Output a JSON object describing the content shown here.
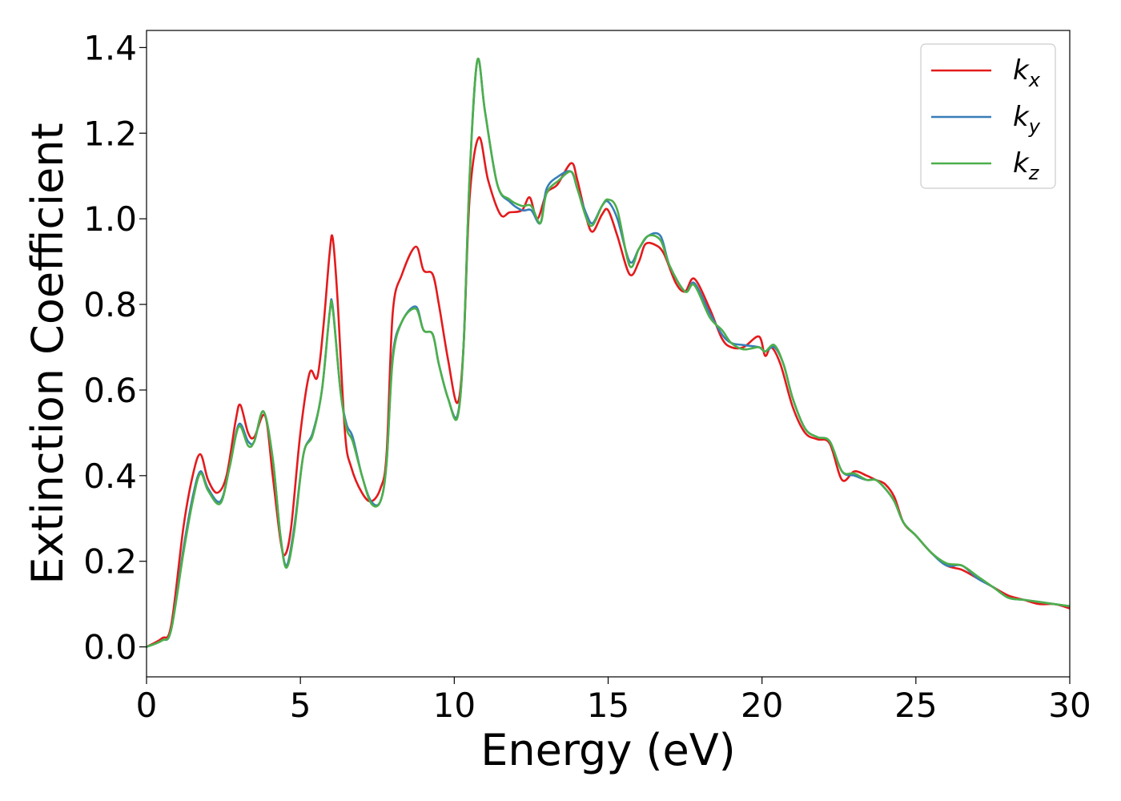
{
  "chart_data": {
    "type": "line",
    "xlabel": "Energy (eV)",
    "ylabel": "Extinction Coefficient",
    "xlim": [
      0,
      30
    ],
    "ylim": [
      -0.07,
      1.44
    ],
    "xticks": [
      "0",
      "5",
      "10",
      "15",
      "20",
      "25",
      "30"
    ],
    "yticks": [
      "0.0",
      "0.2",
      "0.4",
      "0.6",
      "0.8",
      "1.0",
      "1.2",
      "1.4"
    ],
    "grid": false,
    "legend_position": "top-right",
    "series": [
      {
        "name": "k",
        "subscript": "x",
        "color": "#e41a1c",
        "points": [
          [
            0,
            0
          ],
          [
            0.5,
            0.02
          ],
          [
            0.8,
            0.05
          ],
          [
            1.2,
            0.28
          ],
          [
            1.5,
            0.4
          ],
          [
            1.75,
            0.45
          ],
          [
            2.0,
            0.39
          ],
          [
            2.3,
            0.36
          ],
          [
            2.6,
            0.4
          ],
          [
            2.9,
            0.53
          ],
          [
            3.05,
            0.565
          ],
          [
            3.3,
            0.5
          ],
          [
            3.5,
            0.49
          ],
          [
            3.85,
            0.54
          ],
          [
            4.1,
            0.4
          ],
          [
            4.35,
            0.25
          ],
          [
            4.5,
            0.215
          ],
          [
            4.7,
            0.28
          ],
          [
            5.0,
            0.5
          ],
          [
            5.3,
            0.64
          ],
          [
            5.55,
            0.63
          ],
          [
            5.75,
            0.75
          ],
          [
            5.95,
            0.92
          ],
          [
            6.05,
            0.955
          ],
          [
            6.2,
            0.82
          ],
          [
            6.45,
            0.5
          ],
          [
            6.65,
            0.42
          ],
          [
            7.0,
            0.36
          ],
          [
            7.3,
            0.34
          ],
          [
            7.6,
            0.37
          ],
          [
            7.8,
            0.45
          ],
          [
            8.0,
            0.78
          ],
          [
            8.3,
            0.87
          ],
          [
            8.75,
            0.935
          ],
          [
            9.0,
            0.88
          ],
          [
            9.3,
            0.87
          ],
          [
            9.5,
            0.8
          ],
          [
            9.8,
            0.67
          ],
          [
            10.1,
            0.57
          ],
          [
            10.3,
            0.7
          ],
          [
            10.5,
            1.05
          ],
          [
            10.8,
            1.19
          ],
          [
            11.1,
            1.09
          ],
          [
            11.5,
            1.01
          ],
          [
            11.8,
            1.015
          ],
          [
            12.2,
            1.02
          ],
          [
            12.45,
            1.05
          ],
          [
            12.7,
            1.0
          ],
          [
            13.0,
            1.06
          ],
          [
            13.35,
            1.08
          ],
          [
            13.8,
            1.13
          ],
          [
            14.0,
            1.09
          ],
          [
            14.3,
            1.0
          ],
          [
            14.5,
            0.97
          ],
          [
            14.8,
            1.01
          ],
          [
            15.0,
            1.02
          ],
          [
            15.3,
            0.96
          ],
          [
            15.7,
            0.87
          ],
          [
            16.0,
            0.9
          ],
          [
            16.2,
            0.94
          ],
          [
            16.5,
            0.94
          ],
          [
            16.8,
            0.92
          ],
          [
            17.2,
            0.85
          ],
          [
            17.5,
            0.83
          ],
          [
            17.8,
            0.86
          ],
          [
            18.3,
            0.79
          ],
          [
            18.7,
            0.72
          ],
          [
            19.0,
            0.7
          ],
          [
            19.4,
            0.7
          ],
          [
            19.9,
            0.725
          ],
          [
            20.1,
            0.68
          ],
          [
            20.3,
            0.7
          ],
          [
            20.6,
            0.66
          ],
          [
            21.0,
            0.56
          ],
          [
            21.4,
            0.5
          ],
          [
            21.8,
            0.485
          ],
          [
            22.2,
            0.475
          ],
          [
            22.6,
            0.39
          ],
          [
            23.0,
            0.41
          ],
          [
            23.4,
            0.4
          ],
          [
            23.7,
            0.39
          ],
          [
            24.0,
            0.38
          ],
          [
            24.3,
            0.35
          ],
          [
            24.6,
            0.29
          ],
          [
            25.0,
            0.26
          ],
          [
            25.5,
            0.22
          ],
          [
            26.0,
            0.19
          ],
          [
            26.5,
            0.18
          ],
          [
            27.0,
            0.16
          ],
          [
            27.5,
            0.14
          ],
          [
            28.0,
            0.12
          ],
          [
            28.5,
            0.11
          ],
          [
            29.0,
            0.1
          ],
          [
            29.5,
            0.1
          ],
          [
            30.0,
            0.09
          ]
        ]
      },
      {
        "name": "k",
        "subscript": "y",
        "color": "#377eb8",
        "points": [
          [
            0,
            0
          ],
          [
            0.5,
            0.015
          ],
          [
            0.8,
            0.04
          ],
          [
            1.2,
            0.23
          ],
          [
            1.5,
            0.35
          ],
          [
            1.75,
            0.41
          ],
          [
            2.0,
            0.37
          ],
          [
            2.4,
            0.34
          ],
          [
            2.7,
            0.42
          ],
          [
            3.0,
            0.52
          ],
          [
            3.3,
            0.48
          ],
          [
            3.5,
            0.48
          ],
          [
            3.8,
            0.55
          ],
          [
            4.1,
            0.44
          ],
          [
            4.35,
            0.26
          ],
          [
            4.55,
            0.19
          ],
          [
            4.8,
            0.28
          ],
          [
            5.1,
            0.45
          ],
          [
            5.4,
            0.5
          ],
          [
            5.7,
            0.6
          ],
          [
            5.95,
            0.78
          ],
          [
            6.05,
            0.795
          ],
          [
            6.3,
            0.6
          ],
          [
            6.5,
            0.52
          ],
          [
            6.7,
            0.49
          ],
          [
            7.0,
            0.4
          ],
          [
            7.3,
            0.34
          ],
          [
            7.6,
            0.34
          ],
          [
            7.8,
            0.43
          ],
          [
            8.0,
            0.68
          ],
          [
            8.3,
            0.76
          ],
          [
            8.75,
            0.795
          ],
          [
            9.0,
            0.74
          ],
          [
            9.3,
            0.73
          ],
          [
            9.5,
            0.66
          ],
          [
            9.8,
            0.58
          ],
          [
            10.1,
            0.54
          ],
          [
            10.3,
            0.7
          ],
          [
            10.5,
            1.1
          ],
          [
            10.75,
            1.37
          ],
          [
            11.0,
            1.25
          ],
          [
            11.4,
            1.08
          ],
          [
            11.8,
            1.04
          ],
          [
            12.2,
            1.02
          ],
          [
            12.5,
            1.02
          ],
          [
            12.8,
            0.99
          ],
          [
            13.0,
            1.07
          ],
          [
            13.4,
            1.1
          ],
          [
            13.8,
            1.11
          ],
          [
            14.0,
            1.07
          ],
          [
            14.3,
            1.01
          ],
          [
            14.5,
            0.99
          ],
          [
            14.8,
            1.03
          ],
          [
            15.0,
            1.04
          ],
          [
            15.3,
            1.0
          ],
          [
            15.7,
            0.9
          ],
          [
            16.0,
            0.93
          ],
          [
            16.3,
            0.96
          ],
          [
            16.7,
            0.96
          ],
          [
            17.0,
            0.89
          ],
          [
            17.5,
            0.83
          ],
          [
            17.8,
            0.85
          ],
          [
            18.3,
            0.78
          ],
          [
            18.7,
            0.73
          ],
          [
            19.0,
            0.71
          ],
          [
            19.4,
            0.705
          ],
          [
            19.9,
            0.7
          ],
          [
            20.1,
            0.69
          ],
          [
            20.4,
            0.7
          ],
          [
            20.7,
            0.66
          ],
          [
            21.0,
            0.58
          ],
          [
            21.4,
            0.51
          ],
          [
            21.8,
            0.49
          ],
          [
            22.2,
            0.48
          ],
          [
            22.6,
            0.41
          ],
          [
            23.0,
            0.4
          ],
          [
            23.4,
            0.39
          ],
          [
            23.7,
            0.39
          ],
          [
            24.0,
            0.37
          ],
          [
            24.3,
            0.34
          ],
          [
            24.6,
            0.29
          ],
          [
            25.0,
            0.26
          ],
          [
            25.5,
            0.22
          ],
          [
            26.0,
            0.19
          ],
          [
            26.5,
            0.19
          ],
          [
            27.0,
            0.16
          ],
          [
            27.5,
            0.14
          ],
          [
            28.0,
            0.115
          ],
          [
            28.5,
            0.11
          ],
          [
            29.0,
            0.105
          ],
          [
            29.5,
            0.1
          ],
          [
            30.0,
            0.095
          ]
        ]
      },
      {
        "name": "k",
        "subscript": "z",
        "color": "#4daf4a",
        "points": [
          [
            0,
            0
          ],
          [
            0.5,
            0.015
          ],
          [
            0.8,
            0.04
          ],
          [
            1.2,
            0.22
          ],
          [
            1.5,
            0.34
          ],
          [
            1.75,
            0.405
          ],
          [
            2.0,
            0.365
          ],
          [
            2.4,
            0.335
          ],
          [
            2.7,
            0.42
          ],
          [
            3.0,
            0.515
          ],
          [
            3.3,
            0.47
          ],
          [
            3.5,
            0.48
          ],
          [
            3.8,
            0.55
          ],
          [
            4.1,
            0.44
          ],
          [
            4.35,
            0.26
          ],
          [
            4.55,
            0.185
          ],
          [
            4.8,
            0.27
          ],
          [
            5.1,
            0.45
          ],
          [
            5.4,
            0.495
          ],
          [
            5.7,
            0.6
          ],
          [
            5.95,
            0.78
          ],
          [
            6.05,
            0.79
          ],
          [
            6.3,
            0.6
          ],
          [
            6.5,
            0.51
          ],
          [
            6.7,
            0.48
          ],
          [
            7.0,
            0.4
          ],
          [
            7.3,
            0.335
          ],
          [
            7.6,
            0.34
          ],
          [
            7.8,
            0.43
          ],
          [
            8.0,
            0.67
          ],
          [
            8.3,
            0.76
          ],
          [
            8.75,
            0.79
          ],
          [
            9.0,
            0.74
          ],
          [
            9.3,
            0.73
          ],
          [
            9.5,
            0.66
          ],
          [
            9.8,
            0.58
          ],
          [
            10.1,
            0.535
          ],
          [
            10.3,
            0.7
          ],
          [
            10.5,
            1.1
          ],
          [
            10.75,
            1.37
          ],
          [
            11.0,
            1.25
          ],
          [
            11.4,
            1.08
          ],
          [
            11.8,
            1.045
          ],
          [
            12.2,
            1.03
          ],
          [
            12.5,
            1.03
          ],
          [
            12.8,
            0.99
          ],
          [
            13.0,
            1.06
          ],
          [
            13.4,
            1.09
          ],
          [
            13.8,
            1.11
          ],
          [
            14.0,
            1.07
          ],
          [
            14.3,
            1.0
          ],
          [
            14.5,
            0.985
          ],
          [
            14.8,
            1.03
          ],
          [
            15.0,
            1.045
          ],
          [
            15.3,
            1.02
          ],
          [
            15.7,
            0.89
          ],
          [
            16.0,
            0.93
          ],
          [
            16.3,
            0.96
          ],
          [
            16.7,
            0.95
          ],
          [
            17.0,
            0.89
          ],
          [
            17.5,
            0.83
          ],
          [
            17.8,
            0.845
          ],
          [
            18.3,
            0.77
          ],
          [
            18.7,
            0.74
          ],
          [
            19.0,
            0.71
          ],
          [
            19.4,
            0.695
          ],
          [
            19.9,
            0.7
          ],
          [
            20.1,
            0.69
          ],
          [
            20.4,
            0.705
          ],
          [
            20.7,
            0.66
          ],
          [
            21.0,
            0.58
          ],
          [
            21.4,
            0.51
          ],
          [
            21.8,
            0.49
          ],
          [
            22.2,
            0.48
          ],
          [
            22.6,
            0.41
          ],
          [
            23.0,
            0.405
          ],
          [
            23.4,
            0.39
          ],
          [
            23.7,
            0.39
          ],
          [
            24.0,
            0.37
          ],
          [
            24.3,
            0.34
          ],
          [
            24.6,
            0.29
          ],
          [
            25.0,
            0.26
          ],
          [
            25.5,
            0.22
          ],
          [
            26.0,
            0.195
          ],
          [
            26.5,
            0.19
          ],
          [
            27.0,
            0.165
          ],
          [
            27.5,
            0.14
          ],
          [
            28.0,
            0.115
          ],
          [
            28.5,
            0.11
          ],
          [
            29.0,
            0.105
          ],
          [
            29.5,
            0.1
          ],
          [
            30.0,
            0.095
          ]
        ]
      }
    ]
  }
}
